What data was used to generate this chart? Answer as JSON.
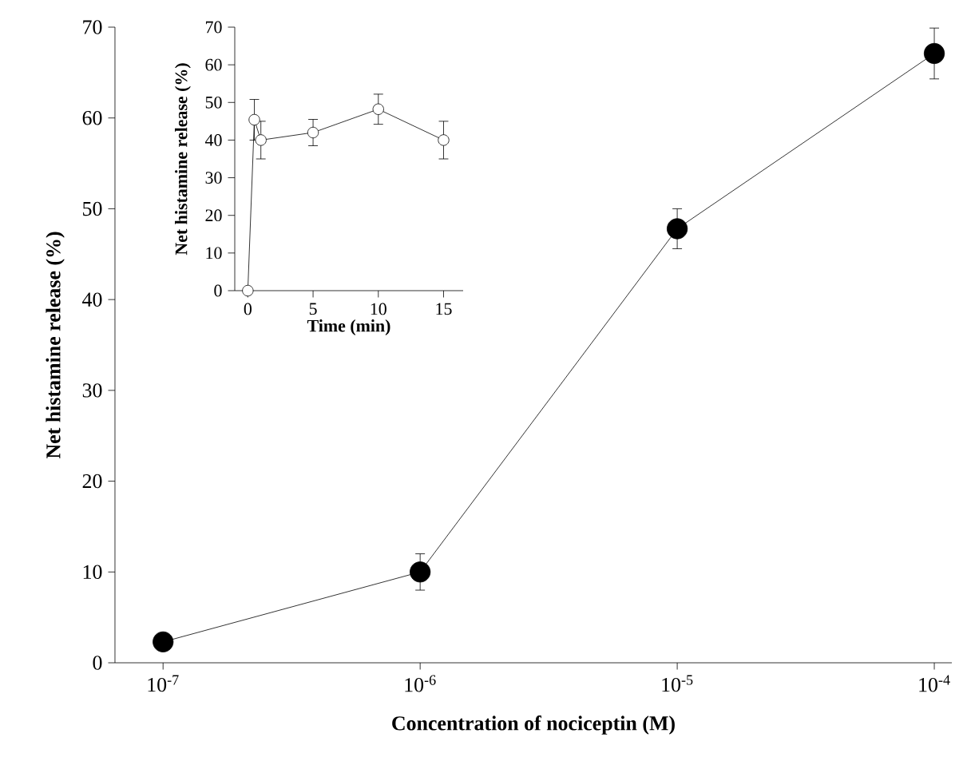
{
  "chart_data": [
    {
      "type": "line",
      "xlabel": "Concentration of nociceptin (M)",
      "ylabel": "Net histamine release (%)",
      "log": "x",
      "x": [
        1e-07,
        1e-06,
        1e-05,
        0.0001
      ],
      "series": [
        {
          "color": "#000000",
          "values": [
            2.3,
            10,
            47.8,
            67.1
          ],
          "errors": [
            null,
            2,
            2.2,
            2.8
          ]
        }
      ],
      "xlim": [
        6.5e-08,
        0.000117
      ],
      "ylim": [
        0,
        70
      ],
      "xticks": [
        {
          "value": 1e-07,
          "label": "10$^{-7}$"
        },
        {
          "value": 1e-06,
          "label": "10$^{-6}$"
        },
        {
          "value": 1e-05,
          "label": "10$^{-5}$"
        },
        {
          "value": 0.0001,
          "label": "10$^{-4}$"
        }
      ],
      "yticks": [
        0,
        10,
        20,
        30,
        40,
        50,
        60,
        70
      ],
      "marker": "circle"
    },
    {
      "type": "line",
      "xlabel": "Time (min)",
      "ylabel": "Net histamine release (%)",
      "x": [
        0,
        0.5,
        1,
        5,
        10,
        15
      ],
      "series": [
        {
          "color": "#000000",
          "values": [
            0,
            45.4,
            40,
            42,
            48.2,
            40
          ],
          "errors": [
            null,
            5.4,
            5,
            3.5,
            4,
            5
          ]
        }
      ],
      "xlim": [
        -1,
        16.5
      ],
      "ylim": [
        0,
        70
      ],
      "xticks": [
        0,
        5,
        10,
        15
      ],
      "yticks": [
        0,
        10,
        20,
        30,
        40,
        50,
        60,
        70
      ],
      "marker": "circle"
    }
  ]
}
